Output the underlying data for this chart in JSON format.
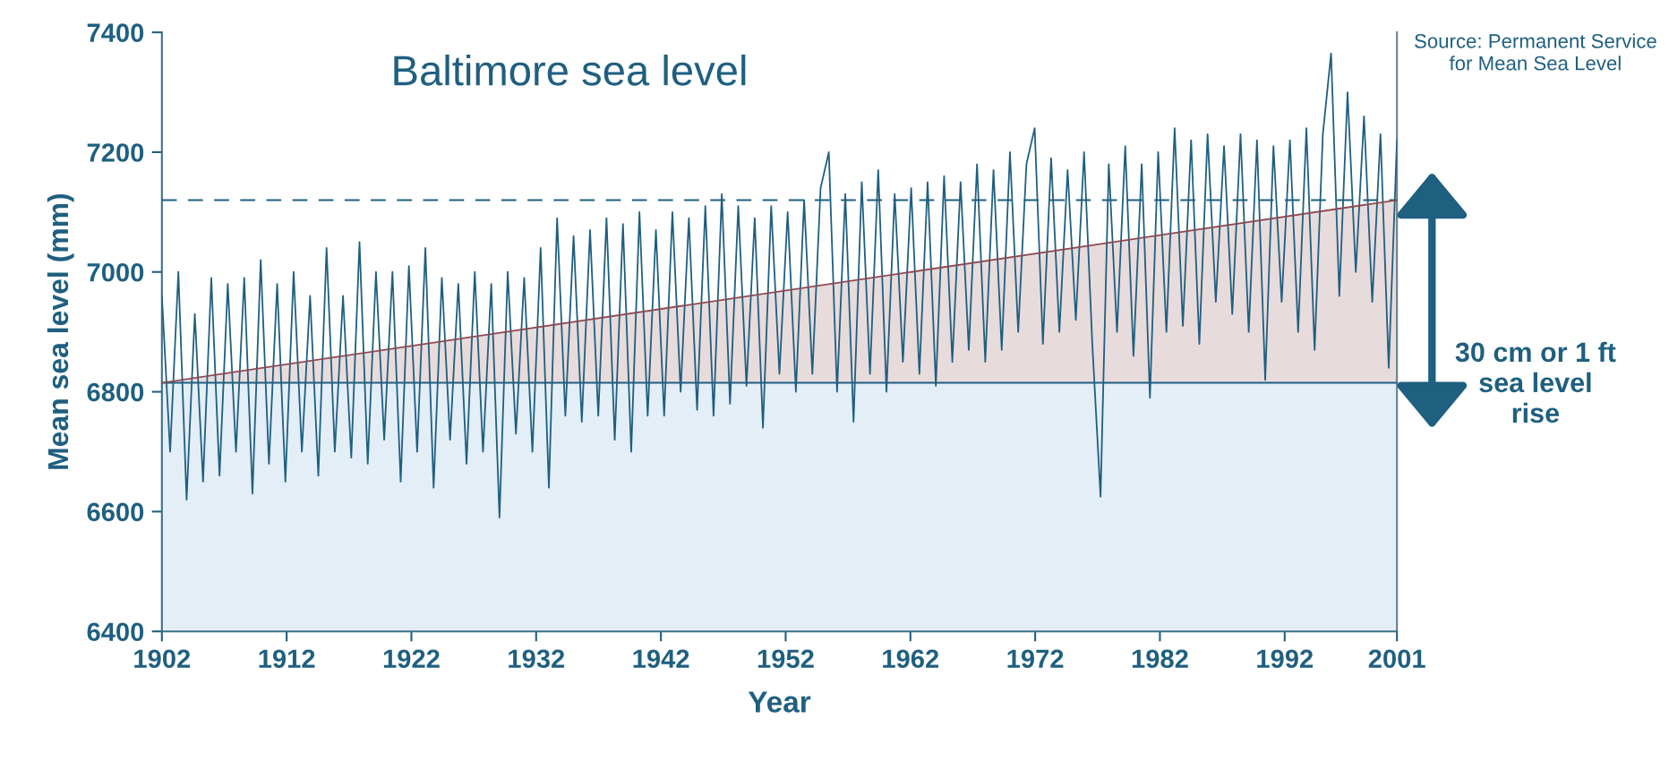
{
  "chart_data": {
    "type": "line",
    "title": "Baltimore sea level",
    "xlabel": "Year",
    "ylabel": "Mean sea level (mm)",
    "annotations": [
      "Source: Permanent Service\nfor Mean Sea Level",
      "30 cm or 1 ft\nsea level\nrise"
    ],
    "xlim": [
      1902,
      2001
    ],
    "xticks": [
      1902,
      1912,
      1922,
      1932,
      1942,
      1952,
      1962,
      1972,
      1982,
      1992,
      2001
    ],
    "ylim": [
      6400,
      7400
    ],
    "yticks": [
      6400,
      6600,
      6800,
      7000,
      7200,
      7400
    ],
    "grid": false,
    "legend": false,
    "marker": "none",
    "line_style": "solid",
    "bands": [
      {
        "axis": "y",
        "from": 6400,
        "to": 6815,
        "color": "#e3eef7"
      }
    ],
    "ref_lines": [
      {
        "axis": "y",
        "value": 6815,
        "color": "#1f5f80",
        "line_style": "solid"
      },
      {
        "axis": "y",
        "value": 7120,
        "color": "#1f5f80",
        "line_style": "dashed"
      }
    ],
    "series": [
      {
        "color": "#1f5f80",
        "x": [
          1902,
          1902.66,
          1903.32,
          1903.98,
          1904.64,
          1905.3,
          1905.96,
          1906.62,
          1907.28,
          1907.94,
          1908.6,
          1909.26,
          1909.92,
          1910.58,
          1911.24,
          1911.9,
          1912.56,
          1913.22,
          1913.88,
          1914.54,
          1915.2,
          1915.86,
          1916.52,
          1917.18,
          1917.84,
          1918.5,
          1919.16,
          1919.82,
          1920.48,
          1921.14,
          1921.8,
          1922.46,
          1923.12,
          1923.78,
          1924.44,
          1925.1,
          1925.76,
          1926.42,
          1927.08,
          1927.74,
          1928.4,
          1929.06,
          1929.72,
          1930.38,
          1931.04,
          1931.7,
          1932.36,
          1933.02,
          1933.68,
          1934.34,
          1935,
          1935.66,
          1936.32,
          1936.98,
          1937.64,
          1938.3,
          1938.96,
          1939.62,
          1940.28,
          1940.94,
          1941.6,
          1942.26,
          1942.92,
          1943.58,
          1944.24,
          1944.9,
          1945.56,
          1946.22,
          1946.88,
          1947.54,
          1948.2,
          1948.86,
          1949.52,
          1950.18,
          1950.84,
          1951.5,
          1952.16,
          1952.82,
          1953.48,
          1954.14,
          1954.8,
          1955.46,
          1956.12,
          1956.78,
          1957.44,
          1958.1,
          1958.76,
          1959.42,
          1960.08,
          1960.74,
          1961.4,
          1962.06,
          1962.72,
          1963.38,
          1964.04,
          1964.7,
          1965.36,
          1966.02,
          1966.68,
          1967.34,
          1968,
          1968.66,
          1969.32,
          1969.98,
          1970.64,
          1971.3,
          1971.96,
          1972.62,
          1973.28,
          1973.94,
          1974.6,
          1975.26,
          1975.92,
          1976.58,
          1977.24,
          1977.9,
          1978.56,
          1979.22,
          1979.88,
          1980.54,
          1981.2,
          1981.86,
          1982.52,
          1983.18,
          1983.84,
          1984.5,
          1985.16,
          1985.82,
          1986.48,
          1987.14,
          1987.8,
          1988.46,
          1989.12,
          1989.78,
          1990.44,
          1991.1,
          1991.76,
          1992.42,
          1993.08,
          1993.74,
          1994.4,
          1995.06,
          1995.72,
          1996.38,
          1997.04,
          1997.7,
          1998.36,
          1999.02,
          1999.68,
          2000.34,
          2001
        ],
        "values": [
          6960,
          6700,
          7000,
          6620,
          6930,
          6650,
          6990,
          6660,
          6980,
          6700,
          6990,
          6630,
          7020,
          6680,
          6980,
          6650,
          7000,
          6700,
          6960,
          6660,
          7040,
          6700,
          6960,
          6690,
          7050,
          6680,
          7000,
          6720,
          7000,
          6650,
          7010,
          6700,
          7040,
          6640,
          6990,
          6720,
          6980,
          6680,
          7000,
          6700,
          6980,
          6590,
          7000,
          6730,
          6990,
          6700,
          7040,
          6640,
          7090,
          6760,
          7060,
          6750,
          7070,
          6760,
          7090,
          6720,
          7080,
          6700,
          7100,
          6760,
          7070,
          6760,
          7100,
          6800,
          7090,
          6770,
          7110,
          6760,
          7130,
          6780,
          7110,
          6810,
          7090,
          6740,
          7110,
          6830,
          7100,
          6800,
          7120,
          6830,
          7140,
          7200,
          6800,
          7130,
          6750,
          7150,
          6830,
          7170,
          6800,
          7130,
          6850,
          7140,
          6830,
          7150,
          6810,
          7160,
          6850,
          7150,
          6870,
          7180,
          6850,
          7170,
          6870,
          7200,
          6900,
          7180,
          7240,
          6880,
          7190,
          6900,
          7170,
          6920,
          7200,
          6880,
          6625,
          7180,
          6900,
          7210,
          6860,
          7180,
          6790,
          7200,
          6900,
          7240,
          6910,
          7220,
          6880,
          7230,
          6950,
          7210,
          6930,
          7230,
          6900,
          7220,
          6820,
          7210,
          6950,
          7220,
          6900,
          7240,
          6870,
          7230,
          7365,
          6960,
          7300,
          7000,
          7260,
          6950,
          7230,
          6840,
          7220
        ]
      },
      {
        "type": "line",
        "color": "#8b4a52",
        "x": [
          1902,
          2001
        ],
        "values": [
          6815,
          7120
        ],
        "lower": [
          6815,
          6815
        ],
        "upper": [
          6815,
          7120
        ]
      }
    ]
  }
}
